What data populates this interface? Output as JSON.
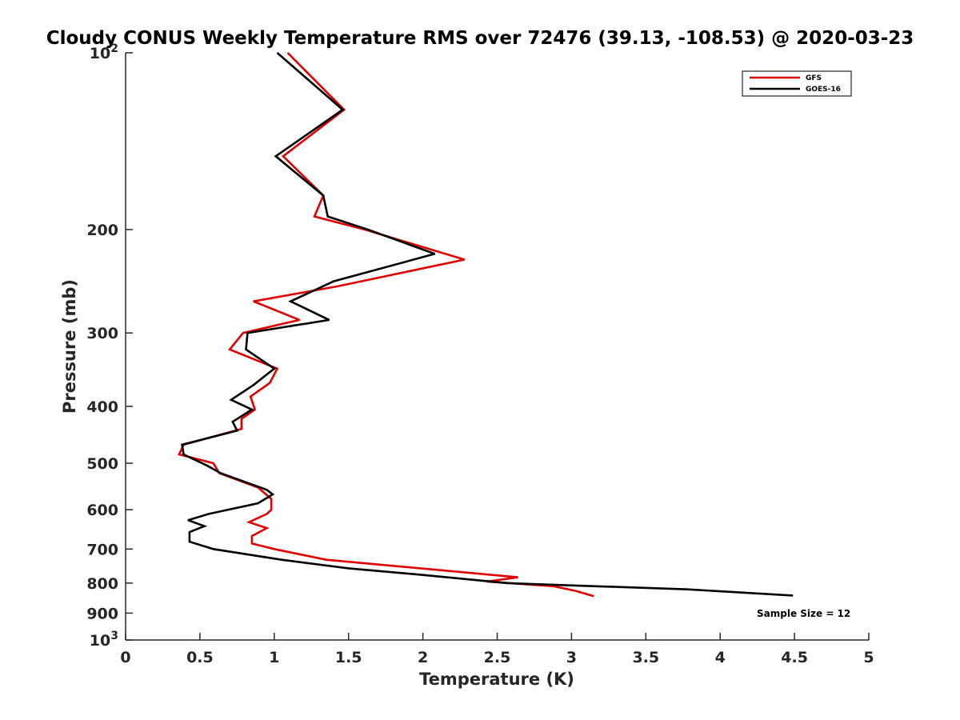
{
  "chart_data": {
    "type": "line",
    "title": "Cloudy CONUS Weekly Temperature RMS over 72476 (39.13, -108.53) @ 2020-03-23",
    "xlabel": "Temperature (K)",
    "ylabel": "Pressure (mb)",
    "xlim": [
      0,
      5
    ],
    "ylim": [
      100,
      1000
    ],
    "y_scale": "log",
    "y_reversed": true,
    "grid": false,
    "legend_position": "top-right",
    "x_ticks": [
      {
        "value": 0,
        "label": "0"
      },
      {
        "value": 0.5,
        "label": "0.5"
      },
      {
        "value": 1,
        "label": "1"
      },
      {
        "value": 1.5,
        "label": "1.5"
      },
      {
        "value": 2,
        "label": "2"
      },
      {
        "value": 2.5,
        "label": "2.5"
      },
      {
        "value": 3,
        "label": "3"
      },
      {
        "value": 3.5,
        "label": "3.5"
      },
      {
        "value": 4,
        "label": "4"
      },
      {
        "value": 4.5,
        "label": "4.5"
      },
      {
        "value": 5,
        "label": "5"
      }
    ],
    "y_ticks": [
      {
        "value": 100,
        "label": "10",
        "exp": "2"
      },
      {
        "value": 200,
        "label": "200"
      },
      {
        "value": 300,
        "label": "300"
      },
      {
        "value": 400,
        "label": "400"
      },
      {
        "value": 500,
        "label": "500"
      },
      {
        "value": 600,
        "label": "600"
      },
      {
        "value": 700,
        "label": "700"
      },
      {
        "value": 800,
        "label": "800"
      },
      {
        "value": 900,
        "label": "900"
      },
      {
        "value": 1000,
        "label": "10",
        "exp": "3"
      }
    ],
    "series": [
      {
        "name": "GFS",
        "color": "#e00000",
        "points": [
          [
            1.09,
            100
          ],
          [
            1.47,
            125
          ],
          [
            1.06,
            150
          ],
          [
            1.33,
            175
          ],
          [
            1.27,
            190
          ],
          [
            1.61,
            200
          ],
          [
            2.28,
            225
          ],
          [
            1.42,
            250
          ],
          [
            0.86,
            265
          ],
          [
            1.17,
            285
          ],
          [
            0.79,
            300
          ],
          [
            0.7,
            320
          ],
          [
            1.02,
            345
          ],
          [
            0.97,
            365
          ],
          [
            0.84,
            385
          ],
          [
            0.87,
            405
          ],
          [
            0.78,
            420
          ],
          [
            0.78,
            437
          ],
          [
            0.39,
            465
          ],
          [
            0.36,
            483
          ],
          [
            0.59,
            500
          ],
          [
            0.63,
            520
          ],
          [
            0.89,
            550
          ],
          [
            0.98,
            575
          ],
          [
            0.98,
            600
          ],
          [
            0.95,
            610
          ],
          [
            0.83,
            630
          ],
          [
            0.95,
            645
          ],
          [
            0.85,
            665
          ],
          [
            0.85,
            685
          ],
          [
            1.0,
            700
          ],
          [
            1.35,
            730
          ],
          [
            2.64,
            782
          ],
          [
            2.43,
            795
          ],
          [
            2.88,
            810
          ],
          [
            3.03,
            825
          ],
          [
            3.15,
            842
          ]
        ]
      },
      {
        "name": "GOES-16",
        "color": "#000000",
        "points": [
          [
            1.02,
            100
          ],
          [
            1.46,
            125
          ],
          [
            1.01,
            150
          ],
          [
            1.33,
            175
          ],
          [
            1.36,
            190
          ],
          [
            1.63,
            200
          ],
          [
            2.08,
            220
          ],
          [
            1.4,
            245
          ],
          [
            1.11,
            265
          ],
          [
            1.37,
            285
          ],
          [
            0.82,
            300
          ],
          [
            0.81,
            320
          ],
          [
            1.0,
            345
          ],
          [
            0.86,
            368
          ],
          [
            0.71,
            390
          ],
          [
            0.85,
            405
          ],
          [
            0.72,
            425
          ],
          [
            0.75,
            440
          ],
          [
            0.38,
            465
          ],
          [
            0.39,
            483
          ],
          [
            0.55,
            505
          ],
          [
            0.64,
            520
          ],
          [
            0.95,
            555
          ],
          [
            0.99,
            565
          ],
          [
            0.89,
            585
          ],
          [
            0.56,
            610
          ],
          [
            0.42,
            625
          ],
          [
            0.53,
            640
          ],
          [
            0.43,
            655
          ],
          [
            0.43,
            680
          ],
          [
            0.59,
            700
          ],
          [
            1.05,
            730
          ],
          [
            1.5,
            755
          ],
          [
            2.0,
            775
          ],
          [
            2.57,
            800
          ],
          [
            2.87,
            805
          ],
          [
            3.78,
            820
          ],
          [
            4.49,
            840
          ]
        ]
      }
    ],
    "legend": [
      {
        "label": "GFS",
        "color": "#e00000"
      },
      {
        "label": "GOES-16",
        "color": "#000000"
      }
    ],
    "annotation": "Sample Size = 12"
  }
}
